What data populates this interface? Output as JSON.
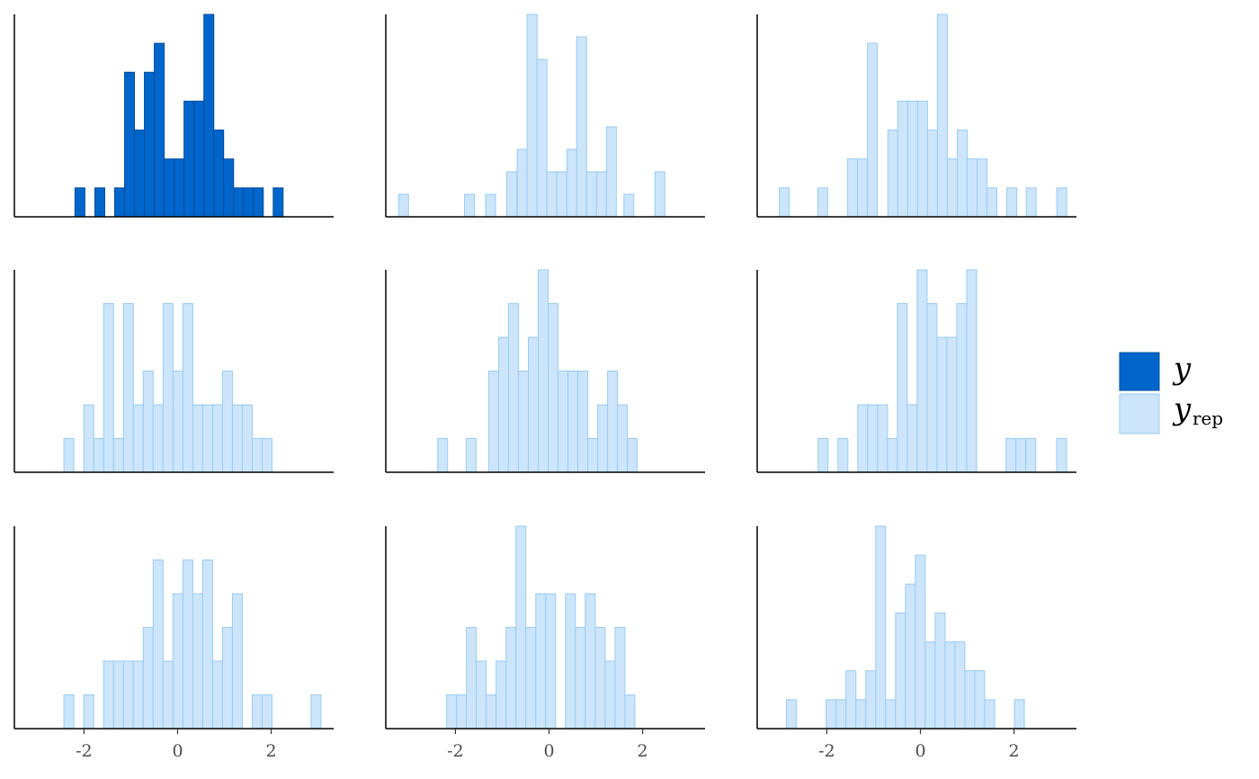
{
  "chart_data": {
    "type": "bar",
    "layout": "3x3 facet grid of histograms",
    "xlim": [
      -3.5,
      3.5
    ],
    "bin_width": 0.2116,
    "x_ticks": [
      "-2",
      "0",
      "2"
    ],
    "colors": {
      "y_fill": "#0066cc",
      "y_stroke": "#004c99",
      "yrep_fill": "#cce5fa",
      "yrep_stroke": "#99ccf2"
    },
    "legend": {
      "placement": "right",
      "entries": [
        {
          "label": "y",
          "subscript": "",
          "kind": "y"
        },
        {
          "label": "y",
          "subscript": "rep",
          "kind": "yrep"
        }
      ]
    },
    "panels": [
      {
        "kind": "y",
        "x_axis_labels": false,
        "max": 7,
        "bins": [
          {
            "x": -2.087,
            "count": 1
          },
          {
            "x": -1.662,
            "count": 1
          },
          {
            "x": -1.239,
            "count": 1
          },
          {
            "x": -1.027,
            "count": 5
          },
          {
            "x": -0.815,
            "count": 3
          },
          {
            "x": -0.604,
            "count": 5
          },
          {
            "x": -0.392,
            "count": 6
          },
          {
            "x": -0.18,
            "count": 2
          },
          {
            "x": 0.031,
            "count": 2
          },
          {
            "x": 0.243,
            "count": 4
          },
          {
            "x": 0.455,
            "count": 4
          },
          {
            "x": 0.667,
            "count": 7
          },
          {
            "x": 0.878,
            "count": 3
          },
          {
            "x": 1.09,
            "count": 2
          },
          {
            "x": 1.302,
            "count": 1
          },
          {
            "x": 1.513,
            "count": 1
          },
          {
            "x": 1.725,
            "count": 1
          },
          {
            "x": 2.148,
            "count": 1
          }
        ]
      },
      {
        "kind": "yrep",
        "x_axis_labels": false,
        "max": 9,
        "bins": [
          {
            "x": -3.107,
            "count": 1
          },
          {
            "x": -1.699,
            "count": 1
          },
          {
            "x": -1.248,
            "count": 1
          },
          {
            "x": -0.796,
            "count": 2
          },
          {
            "x": -0.574,
            "count": 3
          },
          {
            "x": -0.362,
            "count": 9
          },
          {
            "x": -0.15,
            "count": 7
          },
          {
            "x": 0.062,
            "count": 2
          },
          {
            "x": 0.274,
            "count": 2
          },
          {
            "x": 0.485,
            "count": 3
          },
          {
            "x": 0.697,
            "count": 8
          },
          {
            "x": 0.909,
            "count": 2
          },
          {
            "x": 1.121,
            "count": 2
          },
          {
            "x": 1.332,
            "count": 4
          },
          {
            "x": 1.706,
            "count": 1
          },
          {
            "x": 2.368,
            "count": 2
          }
        ]
      },
      {
        "kind": "yrep",
        "x_axis_labels": false,
        "max": 7,
        "bins": [
          {
            "x": -2.91,
            "count": 1
          },
          {
            "x": -2.087,
            "count": 1
          },
          {
            "x": -1.45,
            "count": 2
          },
          {
            "x": -1.238,
            "count": 2
          },
          {
            "x": -1.026,
            "count": 6
          },
          {
            "x": -0.59,
            "count": 3
          },
          {
            "x": -0.378,
            "count": 4
          },
          {
            "x": -0.166,
            "count": 4
          },
          {
            "x": 0.045,
            "count": 4
          },
          {
            "x": 0.257,
            "count": 3
          },
          {
            "x": 0.469,
            "count": 7
          },
          {
            "x": 0.681,
            "count": 2
          },
          {
            "x": 0.893,
            "count": 3
          },
          {
            "x": 1.104,
            "count": 2
          },
          {
            "x": 1.316,
            "count": 2
          },
          {
            "x": 1.528,
            "count": 1
          },
          {
            "x": 1.952,
            "count": 1
          },
          {
            "x": 2.366,
            "count": 1
          },
          {
            "x": 3.019,
            "count": 1
          }
        ]
      },
      {
        "kind": "yrep",
        "x_axis_labels": false,
        "max": 6,
        "bins": [
          {
            "x": -2.323,
            "count": 1
          },
          {
            "x": -1.898,
            "count": 2
          },
          {
            "x": -1.686,
            "count": 1
          },
          {
            "x": -1.475,
            "count": 5
          },
          {
            "x": -1.263,
            "count": 1
          },
          {
            "x": -1.051,
            "count": 5
          },
          {
            "x": -0.84,
            "count": 2
          },
          {
            "x": -0.628,
            "count": 3
          },
          {
            "x": -0.416,
            "count": 2
          },
          {
            "x": -0.205,
            "count": 5
          },
          {
            "x": 0.007,
            "count": 3
          },
          {
            "x": 0.219,
            "count": 5
          },
          {
            "x": 0.43,
            "count": 2
          },
          {
            "x": 0.642,
            "count": 2
          },
          {
            "x": 0.854,
            "count": 2
          },
          {
            "x": 1.065,
            "count": 3
          },
          {
            "x": 1.277,
            "count": 2
          },
          {
            "x": 1.489,
            "count": 2
          },
          {
            "x": 1.7,
            "count": 1
          },
          {
            "x": 1.912,
            "count": 1
          }
        ]
      },
      {
        "kind": "yrep",
        "x_axis_labels": false,
        "max": 6,
        "bins": [
          {
            "x": -2.273,
            "count": 1
          },
          {
            "x": -1.666,
            "count": 1
          },
          {
            "x": -1.183,
            "count": 3
          },
          {
            "x": -0.971,
            "count": 4
          },
          {
            "x": -0.76,
            "count": 5
          },
          {
            "x": -0.548,
            "count": 3
          },
          {
            "x": -0.336,
            "count": 4
          },
          {
            "x": -0.125,
            "count": 6
          },
          {
            "x": 0.087,
            "count": 5
          },
          {
            "x": 0.299,
            "count": 3
          },
          {
            "x": 0.51,
            "count": 3
          },
          {
            "x": 0.722,
            "count": 3
          },
          {
            "x": 0.934,
            "count": 1
          },
          {
            "x": 1.145,
            "count": 2
          },
          {
            "x": 1.357,
            "count": 3
          },
          {
            "x": 1.569,
            "count": 2
          },
          {
            "x": 1.78,
            "count": 1
          }
        ]
      },
      {
        "kind": "yrep",
        "x_axis_labels": false,
        "max": 6,
        "bins": [
          {
            "x": -2.08,
            "count": 1
          },
          {
            "x": -1.656,
            "count": 1
          },
          {
            "x": -1.234,
            "count": 2
          },
          {
            "x": -1.022,
            "count": 2
          },
          {
            "x": -0.81,
            "count": 2
          },
          {
            "x": -0.599,
            "count": 1
          },
          {
            "x": -0.387,
            "count": 5
          },
          {
            "x": -0.175,
            "count": 2
          },
          {
            "x": 0.036,
            "count": 6
          },
          {
            "x": 0.248,
            "count": 5
          },
          {
            "x": 0.46,
            "count": 4
          },
          {
            "x": 0.671,
            "count": 4
          },
          {
            "x": 0.883,
            "count": 5
          },
          {
            "x": 1.095,
            "count": 6
          },
          {
            "x": 1.934,
            "count": 1
          },
          {
            "x": 2.145,
            "count": 1
          },
          {
            "x": 2.357,
            "count": 1
          },
          {
            "x": 3.017,
            "count": 1
          }
        ]
      },
      {
        "kind": "yrep",
        "x_axis_labels": true,
        "max": 6,
        "bins": [
          {
            "x": -2.323,
            "count": 1
          },
          {
            "x": -1.898,
            "count": 1
          },
          {
            "x": -1.475,
            "count": 2
          },
          {
            "x": -1.263,
            "count": 2
          },
          {
            "x": -1.051,
            "count": 2
          },
          {
            "x": -0.84,
            "count": 2
          },
          {
            "x": -0.628,
            "count": 3
          },
          {
            "x": -0.416,
            "count": 5
          },
          {
            "x": -0.205,
            "count": 2
          },
          {
            "x": 0.007,
            "count": 4
          },
          {
            "x": 0.219,
            "count": 5
          },
          {
            "x": 0.43,
            "count": 4
          },
          {
            "x": 0.642,
            "count": 5
          },
          {
            "x": 0.854,
            "count": 2
          },
          {
            "x": 1.065,
            "count": 3
          },
          {
            "x": 1.277,
            "count": 4
          },
          {
            "x": 1.7,
            "count": 1
          },
          {
            "x": 1.912,
            "count": 1
          },
          {
            "x": 2.956,
            "count": 1
          }
        ]
      },
      {
        "kind": "yrep",
        "x_axis_labels": true,
        "max": 6,
        "bins": [
          {
            "x": -2.082,
            "count": 1
          },
          {
            "x": -1.87,
            "count": 1
          },
          {
            "x": -1.659,
            "count": 3
          },
          {
            "x": -1.447,
            "count": 2
          },
          {
            "x": -1.235,
            "count": 1
          },
          {
            "x": -1.024,
            "count": 2
          },
          {
            "x": -0.812,
            "count": 3
          },
          {
            "x": -0.6,
            "count": 6
          },
          {
            "x": -0.389,
            "count": 3
          },
          {
            "x": -0.177,
            "count": 4
          },
          {
            "x": 0.035,
            "count": 4
          },
          {
            "x": 0.458,
            "count": 4
          },
          {
            "x": 0.67,
            "count": 3
          },
          {
            "x": 0.881,
            "count": 4
          },
          {
            "x": 1.093,
            "count": 3
          },
          {
            "x": 1.305,
            "count": 2
          },
          {
            "x": 1.516,
            "count": 3
          },
          {
            "x": 1.728,
            "count": 1
          }
        ]
      },
      {
        "kind": "yrep",
        "x_axis_labels": true,
        "max": 7,
        "bins": [
          {
            "x": -2.758,
            "count": 1
          },
          {
            "x": -1.908,
            "count": 1
          },
          {
            "x": -1.696,
            "count": 1
          },
          {
            "x": -1.484,
            "count": 2
          },
          {
            "x": -1.273,
            "count": 1
          },
          {
            "x": -1.061,
            "count": 2
          },
          {
            "x": -0.849,
            "count": 7
          },
          {
            "x": -0.638,
            "count": 1
          },
          {
            "x": -0.426,
            "count": 4
          },
          {
            "x": -0.214,
            "count": 5
          },
          {
            "x": -0.003,
            "count": 6
          },
          {
            "x": 0.209,
            "count": 3
          },
          {
            "x": 0.421,
            "count": 4
          },
          {
            "x": 0.632,
            "count": 3
          },
          {
            "x": 0.844,
            "count": 3
          },
          {
            "x": 1.056,
            "count": 2
          },
          {
            "x": 1.267,
            "count": 2
          },
          {
            "x": 1.479,
            "count": 1
          },
          {
            "x": 2.115,
            "count": 1
          }
        ]
      }
    ]
  }
}
